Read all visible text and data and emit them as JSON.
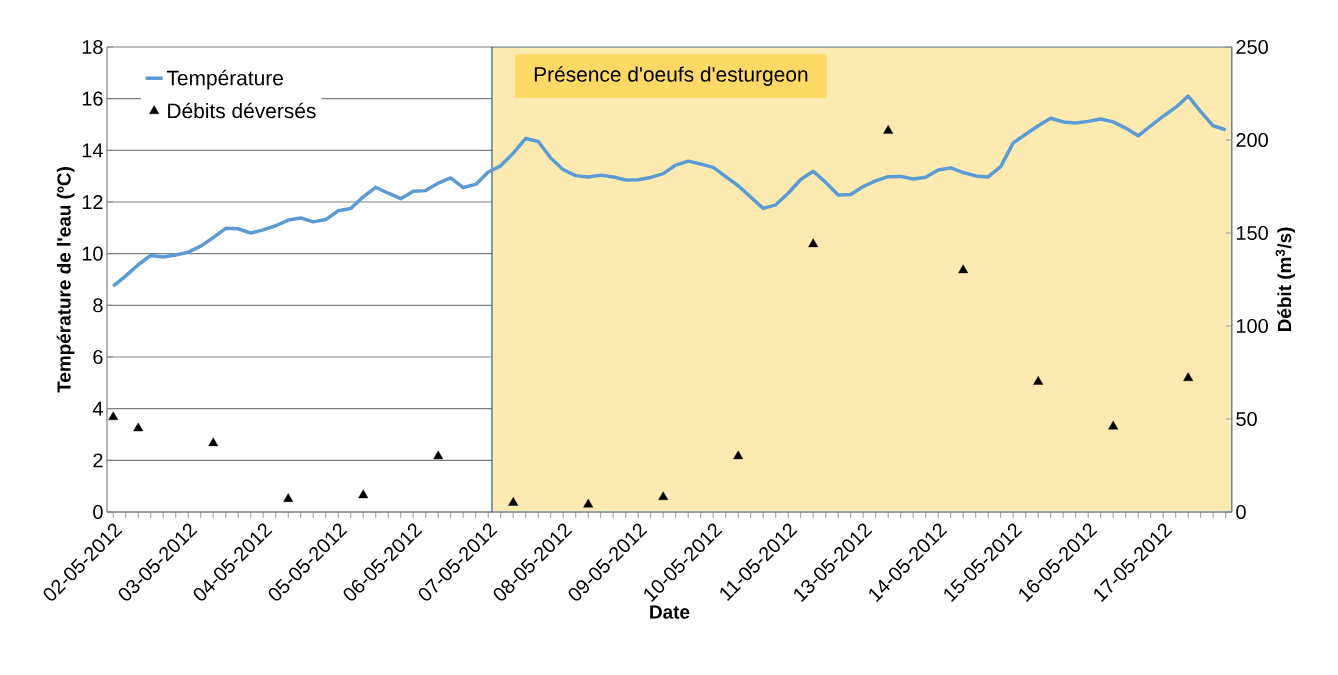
{
  "chart_data": {
    "type": "line",
    "xlabel": "Date",
    "ylabel": "Température de l'eau (ºC)",
    "y2label": "Débit (m$^{3}$/s)",
    "categories": [
      "02-05-2012",
      null,
      null,
      null,
      null,
      null,
      "03-05-2012",
      null,
      null,
      null,
      null,
      null,
      "04-05-2012",
      null,
      null,
      null,
      null,
      null,
      "05-05-2012",
      null,
      null,
      null,
      null,
      null,
      "06-05-2012",
      null,
      null,
      null,
      null,
      null,
      "07-05-2012",
      null,
      null,
      null,
      null,
      null,
      "08-05-2012",
      null,
      null,
      null,
      null,
      null,
      "09-05-2012",
      null,
      null,
      null,
      null,
      null,
      "10-05-2012",
      null,
      null,
      null,
      null,
      null,
      "11-05-2012",
      null,
      null,
      null,
      null,
      null,
      "13-05-2012",
      null,
      null,
      null,
      null,
      null,
      "14-05-2012",
      null,
      null,
      null,
      null,
      null,
      "15-05-2012",
      null,
      null,
      null,
      null,
      null,
      "16-05-2012",
      null,
      null,
      null,
      null,
      null,
      "17-05-2012",
      null,
      null,
      null,
      null,
      null
    ],
    "ylim": [
      0,
      18
    ],
    "yticks": [
      0,
      2,
      4,
      6,
      8,
      10,
      12,
      14,
      16,
      18
    ],
    "y2lim": [
      0,
      250
    ],
    "y2ticks": [
      0,
      50,
      100,
      150,
      200,
      250
    ],
    "grid": "y",
    "legend": "top left",
    "annotations": [
      "Présence d'oeufs d'esturgeon"
    ],
    "series": [
      {
        "name": "Température",
        "color": "#5b9bd5",
        "values": [
          8.74,
          9.14,
          9.57,
          9.93,
          9.87,
          9.95,
          10.06,
          10.29,
          10.62,
          10.98,
          10.96,
          10.8,
          10.92,
          11.08,
          11.3,
          11.38,
          11.23,
          11.32,
          11.66,
          11.75,
          12.2,
          12.57,
          12.34,
          12.13,
          12.42,
          12.44,
          12.73,
          12.93,
          12.56,
          12.68,
          13.16,
          13.4,
          13.89,
          14.46,
          14.34,
          13.7,
          13.25,
          13.02,
          12.97,
          13.04,
          12.97,
          12.85,
          12.86,
          12.95,
          13.1,
          13.43,
          13.58,
          13.47,
          13.34,
          12.98,
          12.63,
          12.19,
          11.75,
          11.89,
          12.34,
          12.87,
          13.19,
          12.76,
          12.27,
          12.29,
          12.6,
          12.82,
          12.98,
          12.99,
          12.89,
          12.96,
          13.24,
          13.32,
          13.14,
          13.01,
          12.97,
          13.37,
          14.29,
          14.62,
          14.95,
          15.24,
          15.1,
          15.06,
          15.12,
          15.21,
          15.1,
          14.86,
          14.56,
          14.95,
          15.32,
          15.66,
          16.1,
          15.5,
          14.95,
          14.79
        ]
      },
      {
        "name": "Débits déversés",
        "type": "scatter",
        "axis": "y2",
        "marker": "triangle",
        "color": "#000000",
        "values": [
          51,
          null,
          45,
          null,
          null,
          null,
          null,
          null,
          37,
          null,
          null,
          null,
          null,
          null,
          7,
          null,
          null,
          null,
          null,
          null,
          9,
          null,
          null,
          null,
          null,
          null,
          30,
          null,
          null,
          null,
          null,
          null,
          5,
          null,
          null,
          null,
          null,
          null,
          4,
          null,
          null,
          null,
          null,
          null,
          8,
          null,
          null,
          null,
          null,
          null,
          30,
          null,
          null,
          null,
          null,
          null,
          144,
          null,
          null,
          null,
          null,
          null,
          205,
          null,
          null,
          null,
          null,
          null,
          130,
          null,
          null,
          null,
          null,
          null,
          70,
          null,
          null,
          null,
          null,
          null,
          46,
          null,
          null,
          null,
          null,
          null,
          72,
          null,
          null,
          null
        ]
      }
    ]
  }
}
